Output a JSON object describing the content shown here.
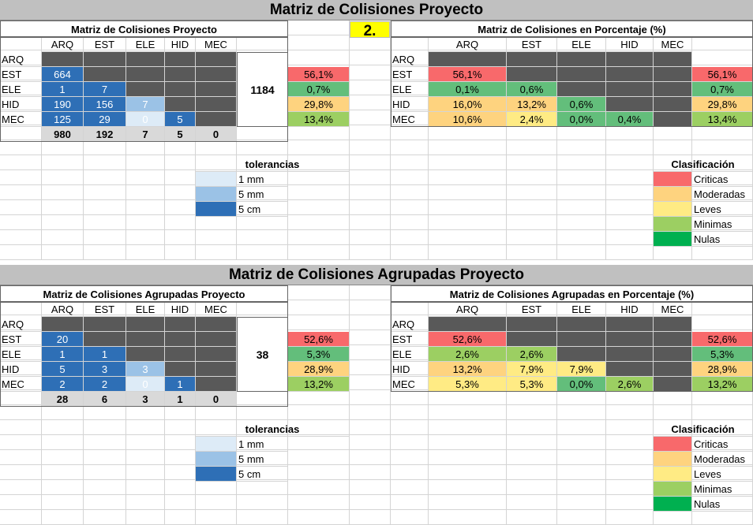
{
  "colors": {
    "critical": "#f8696b",
    "moderate": "#fed37f",
    "minor": "#ffeb84",
    "minimal": "#9ccf62",
    "null": "#00b050",
    "tol_5cm": "#2e6fb6",
    "tol_5mm": "#9bc2e6",
    "tol_1mm": "#ddebf7",
    "blank": "#595959"
  },
  "sections": [
    {
      "banner": "Matriz de Colisiones Proyecto",
      "badge": "2.",
      "left_title": "Matriz de Colisiones Proyecto",
      "right_title": "Matriz de Colisiones en Porcentaje (%)",
      "columns": [
        "ARQ",
        "EST",
        "ELE",
        "HID",
        "MEC"
      ],
      "rows": [
        "ARQ",
        "EST",
        "ELE",
        "HID",
        "MEC"
      ],
      "counts": [
        [],
        [
          {
            "v": "664",
            "t": "5cm"
          }
        ],
        [
          {
            "v": "1",
            "t": "5cm"
          },
          {
            "v": "7",
            "t": "5cm"
          }
        ],
        [
          {
            "v": "190",
            "t": "5cm"
          },
          {
            "v": "156",
            "t": "5cm"
          },
          {
            "v": "7",
            "t": "5mm"
          }
        ],
        [
          {
            "v": "125",
            "t": "5cm"
          },
          {
            "v": "29",
            "t": "5cm"
          },
          {
            "v": "0",
            "t": "1mm"
          },
          {
            "v": "5",
            "t": "5cm"
          }
        ]
      ],
      "col_totals": [
        "980",
        "192",
        "7",
        "5",
        "0"
      ],
      "grand_total": "1184",
      "row_pcts_left": [
        {
          "row": 1,
          "v": "56,1%",
          "c": "red"
        },
        {
          "row": 2,
          "v": "0,7%",
          "c": "green"
        },
        {
          "row": 3,
          "v": "29,8%",
          "c": "orange"
        },
        {
          "row": 4,
          "v": "13,4%",
          "c": "lgreen"
        }
      ],
      "pcts": [
        [],
        [
          {
            "v": "56,1%",
            "c": "red"
          }
        ],
        [
          {
            "v": "0,1%",
            "c": "green"
          },
          {
            "v": "0,6%",
            "c": "green"
          }
        ],
        [
          {
            "v": "16,0%",
            "c": "orange"
          },
          {
            "v": "13,2%",
            "c": "orange"
          },
          {
            "v": "0,6%",
            "c": "green"
          }
        ],
        [
          {
            "v": "10,6%",
            "c": "orange"
          },
          {
            "v": "2,4%",
            "c": "yellow"
          },
          {
            "v": "0,0%",
            "c": "green"
          },
          {
            "v": "0,4%",
            "c": "green"
          }
        ]
      ],
      "row_pcts_right": [
        {
          "row": 1,
          "v": "56,1%",
          "c": "red"
        },
        {
          "row": 2,
          "v": "0,7%",
          "c": "green"
        },
        {
          "row": 3,
          "v": "29,8%",
          "c": "orange"
        },
        {
          "row": 4,
          "v": "13,4%",
          "c": "lgreen"
        }
      ],
      "tolerances_title": "tolerancias",
      "tolerances": [
        {
          "label": "1 mm",
          "c": "1mm"
        },
        {
          "label": "5 mm",
          "c": "5mm"
        },
        {
          "label": "5 cm",
          "c": "5cm"
        }
      ],
      "classification_title": "Clasificación",
      "classification": [
        {
          "label": "Criticas",
          "c": "red"
        },
        {
          "label": "Moderadas",
          "c": "orange"
        },
        {
          "label": "Leves",
          "c": "yellow"
        },
        {
          "label": "Minimas",
          "c": "lgreen"
        },
        {
          "label": "Nulas",
          "c": "dgreen"
        }
      ]
    },
    {
      "banner": "Matriz de Colisiones Agrupadas Proyecto",
      "badge": "",
      "left_title": "Matriz de Colisiones Agrupadas Proyecto",
      "right_title": "Matriz de Colisiones Agrupadas en Porcentaje (%)",
      "columns": [
        "ARQ",
        "EST",
        "ELE",
        "HID",
        "MEC"
      ],
      "rows": [
        "ARQ",
        "EST",
        "ELE",
        "HID",
        "MEC"
      ],
      "counts": [
        [],
        [
          {
            "v": "20",
            "t": "5cm"
          }
        ],
        [
          {
            "v": "1",
            "t": "5cm"
          },
          {
            "v": "1",
            "t": "5cm"
          }
        ],
        [
          {
            "v": "5",
            "t": "5cm"
          },
          {
            "v": "3",
            "t": "5cm"
          },
          {
            "v": "3",
            "t": "5mm"
          }
        ],
        [
          {
            "v": "2",
            "t": "5cm"
          },
          {
            "v": "2",
            "t": "5cm"
          },
          {
            "v": "0",
            "t": "1mm"
          },
          {
            "v": "1",
            "t": "5cm"
          }
        ]
      ],
      "col_totals": [
        "28",
        "6",
        "3",
        "1",
        "0"
      ],
      "grand_total": "38",
      "row_pcts_left": [
        {
          "row": 1,
          "v": "52,6%",
          "c": "red"
        },
        {
          "row": 2,
          "v": "5,3%",
          "c": "green"
        },
        {
          "row": 3,
          "v": "28,9%",
          "c": "orange"
        },
        {
          "row": 4,
          "v": "13,2%",
          "c": "lgreen"
        }
      ],
      "pcts": [
        [],
        [
          {
            "v": "52,6%",
            "c": "red"
          }
        ],
        [
          {
            "v": "2,6%",
            "c": "lgreen"
          },
          {
            "v": "2,6%",
            "c": "lgreen"
          }
        ],
        [
          {
            "v": "13,2%",
            "c": "orange"
          },
          {
            "v": "7,9%",
            "c": "yellow"
          },
          {
            "v": "7,9%",
            "c": "yellow"
          }
        ],
        [
          {
            "v": "5,3%",
            "c": "yellow"
          },
          {
            "v": "5,3%",
            "c": "yellow"
          },
          {
            "v": "0,0%",
            "c": "green"
          },
          {
            "v": "2,6%",
            "c": "lgreen"
          }
        ]
      ],
      "row_pcts_right": [
        {
          "row": 1,
          "v": "52,6%",
          "c": "red"
        },
        {
          "row": 2,
          "v": "5,3%",
          "c": "green"
        },
        {
          "row": 3,
          "v": "28,9%",
          "c": "orange"
        },
        {
          "row": 4,
          "v": "13,2%",
          "c": "lgreen"
        }
      ],
      "tolerances_title": "tolerancias",
      "tolerances": [
        {
          "label": "1 mm",
          "c": "1mm"
        },
        {
          "label": "5 mm",
          "c": "5mm"
        },
        {
          "label": "5 cm",
          "c": "5cm"
        }
      ],
      "classification_title": "Clasificación",
      "classification": [
        {
          "label": "Criticas",
          "c": "red"
        },
        {
          "label": "Moderadas",
          "c": "orange"
        },
        {
          "label": "Leves",
          "c": "yellow"
        },
        {
          "label": "Minimas",
          "c": "lgreen"
        },
        {
          "label": "Nulas",
          "c": "dgreen"
        }
      ]
    }
  ]
}
